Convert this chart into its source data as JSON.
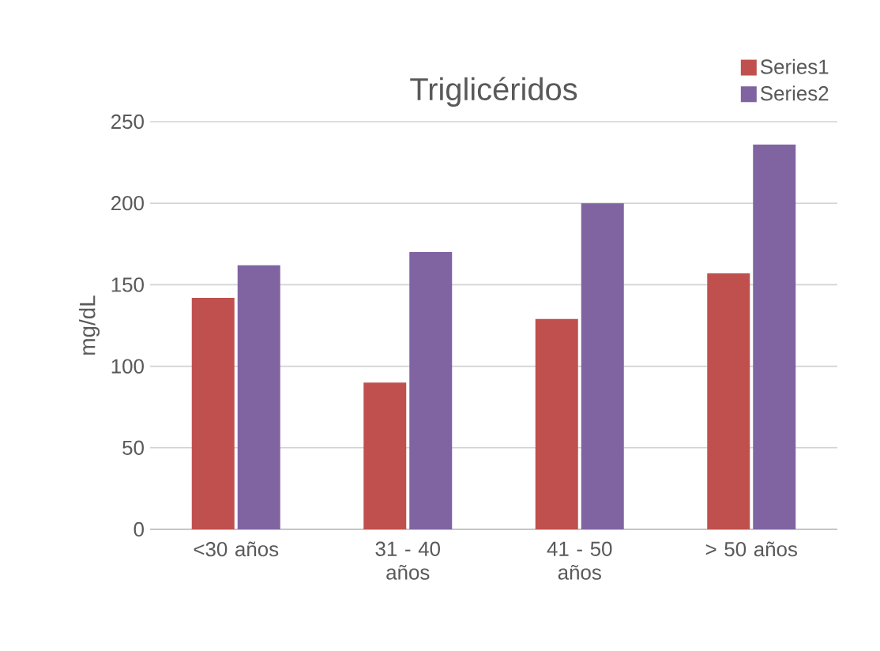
{
  "chart_data": {
    "type": "bar",
    "title": "Triglicéridos",
    "ylabel": "mg/dL",
    "categories": [
      "<30 años",
      "31 - 40 años",
      "41 - 50 años",
      "> 50 años"
    ],
    "series": [
      {
        "name": "Series1",
        "color": "#c0504d",
        "values": [
          142,
          90,
          129,
          157
        ]
      },
      {
        "name": "Series2",
        "color": "#8064a2",
        "values": [
          162,
          170,
          200,
          236
        ]
      }
    ],
    "ylim": [
      0,
      250
    ],
    "yticks": [
      0,
      50,
      100,
      150,
      200,
      250
    ],
    "grid": "y",
    "legend": "top right"
  }
}
